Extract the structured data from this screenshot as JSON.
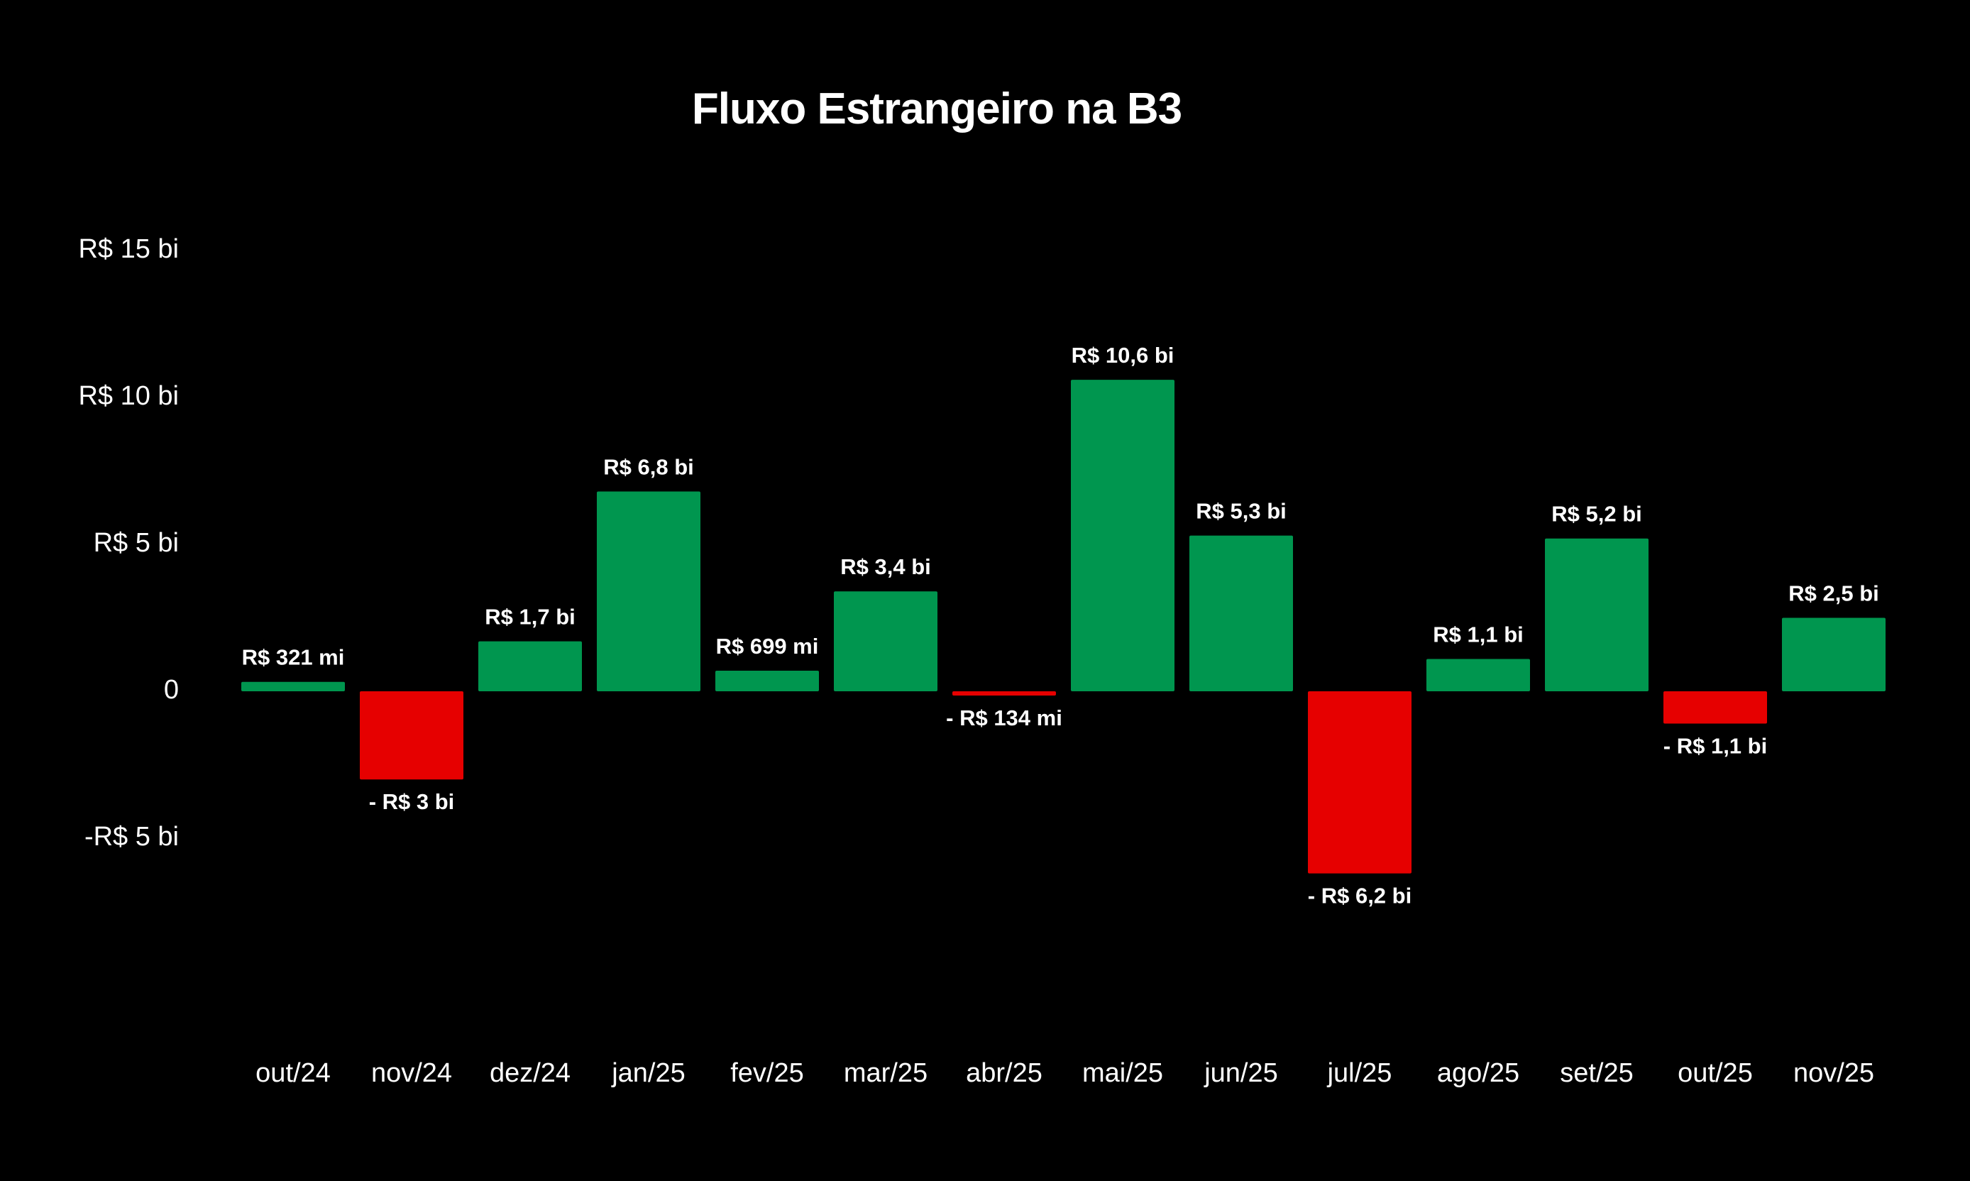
{
  "chart_data": {
    "type": "bar",
    "title": "Fluxo Estrangeiro na B3",
    "xlabel": "",
    "ylabel": "",
    "ylim": [
      -7.5,
      15
    ],
    "grid": false,
    "yticks": [
      {
        "value": 15,
        "label": "R$ 15 bi"
      },
      {
        "value": 10,
        "label": "R$ 10 bi"
      },
      {
        "value": 5,
        "label": "R$ 5 bi"
      },
      {
        "value": 0,
        "label": "0"
      },
      {
        "value": -5,
        "label": "-R$ 5 bi"
      }
    ],
    "categories": [
      "out/24",
      "nov/24",
      "dez/24",
      "jan/25",
      "fev/25",
      "mar/25",
      "abr/25",
      "mai/25",
      "jun/25",
      "jul/25",
      "ago/25",
      "set/25",
      "out/25",
      "nov/25"
    ],
    "values": [
      0.321,
      -3,
      1.7,
      6.8,
      0.699,
      3.4,
      -0.134,
      10.6,
      5.3,
      -6.2,
      1.1,
      5.2,
      -1.1,
      2.5
    ],
    "data_labels": [
      "R$ 321 mi",
      "- R$ 3 bi",
      "R$ 1,7 bi",
      "R$ 6,8 bi",
      "R$ 699 mi",
      "R$ 3,4 bi",
      "- R$ 134 mi",
      "R$ 10,6 bi",
      "R$ 5,3 bi",
      "- R$ 6,2 bi",
      "R$ 1,1 bi",
      "R$ 5,2 bi",
      "- R$ 1,1 bi",
      "R$ 2,5 bi"
    ],
    "colors": {
      "positive": "#00964f",
      "negative": "#e60000",
      "background": "#000000",
      "text": "#ffffff"
    }
  }
}
